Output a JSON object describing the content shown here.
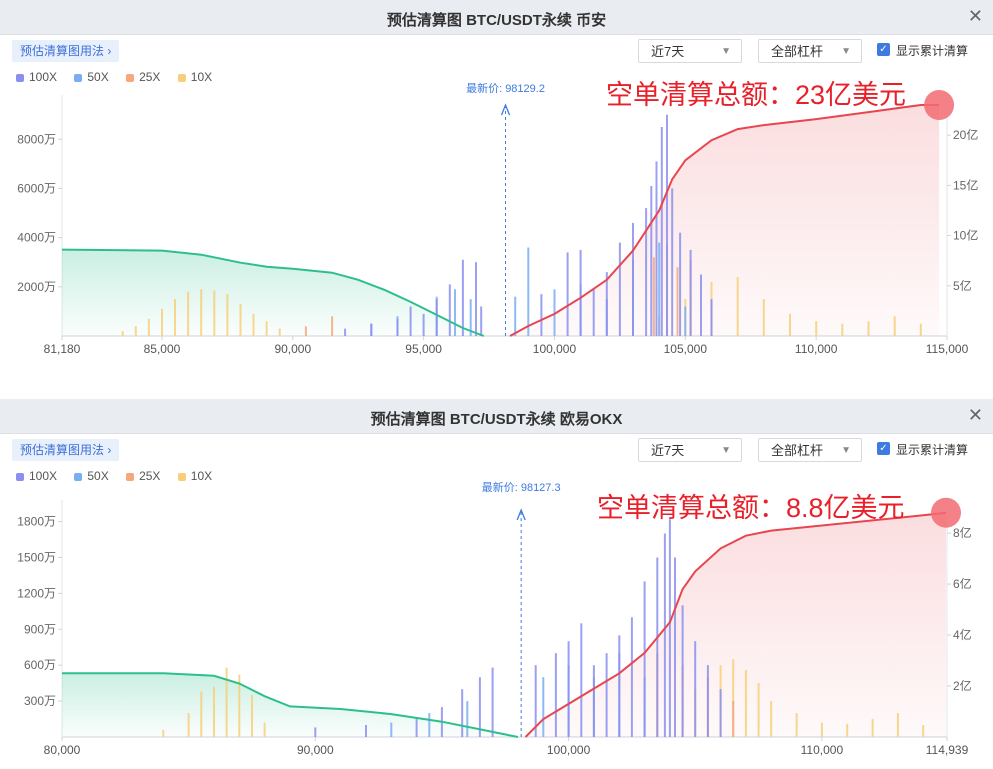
{
  "panels": [
    {
      "title": "预估清算图 BTC/USDT永续 币安",
      "howto": "预估清算图用法",
      "range_select": "近7天",
      "leverage_select": "全部杠杆",
      "show_cumulative": "显示累计清算",
      "legend": [
        "100X",
        "50X",
        "25X",
        "10X"
      ],
      "latest_label": "最新价: 98129.2",
      "annotation": "空单清算总额：23亿美元"
    },
    {
      "title": "预估清算图 BTC/USDT永续 欧易OKX",
      "howto": "预估清算图用法",
      "range_select": "近7天",
      "leverage_select": "全部杠杆",
      "show_cumulative": "显示累计清算",
      "legend": [
        "100X",
        "50X",
        "25X",
        "10X"
      ],
      "latest_label": "最新价: 98127.3",
      "annotation": "空单清算总额：8.8亿美元"
    }
  ],
  "colors": {
    "100X": "#8a8ff0",
    "50X": "#79aef5",
    "25X": "#f5a77d",
    "10X": "#f7cf7a",
    "long_cum": "#2dbf8a",
    "short_cum": "#e8454f",
    "accent": "#3d7be0"
  },
  "chart_data": [
    {
      "type": "bar",
      "exchange": "币安",
      "pair": "BTC/USDT永续",
      "latest_price": 98129.2,
      "xlim": [
        81180,
        115000
      ],
      "x_ticks": [
        "81,180",
        "85,000",
        "90,000",
        "95,000",
        "100,000",
        "105,000",
        "110,000",
        "115,000"
      ],
      "x_tick_values": [
        81180,
        85000,
        90000,
        95000,
        100000,
        105000,
        110000,
        115000
      ],
      "y_left_ticks": [
        "2000万",
        "4000万",
        "6000万",
        "8000万"
      ],
      "y_left_values": [
        2000,
        4000,
        6000,
        8000
      ],
      "ylim_left": [
        0,
        9800
      ],
      "y_right_ticks": [
        "5亿",
        "10亿",
        "15亿",
        "20亿"
      ],
      "y_right_values": [
        5,
        10,
        15,
        20
      ],
      "ylim_right": [
        0,
        24
      ],
      "long_cumulative": {
        "x": [
          81180,
          85000,
          86500,
          88000,
          89000,
          90000,
          91500,
          92500,
          93500,
          94500,
          95500,
          96500,
          97300
        ],
        "y_yi": [
          8.6,
          8.5,
          8.1,
          7.3,
          6.9,
          6.7,
          6.3,
          5.6,
          4.6,
          3.4,
          2.1,
          0.8,
          0
        ]
      },
      "short_cumulative": {
        "x": [
          98300,
          99000,
          100000,
          101000,
          102000,
          103000,
          104000,
          104500,
          105000,
          106000,
          107000,
          108000,
          110000,
          112000,
          114000,
          114700
        ],
        "y_yi": [
          0,
          1.0,
          2.2,
          3.8,
          5.6,
          8.5,
          12.5,
          15.6,
          17.5,
          19.5,
          20.6,
          21.0,
          21.6,
          22.3,
          23.0,
          23.0
        ]
      },
      "bars": {
        "100X": {
          "x": [
            92000,
            93000,
            94000,
            94500,
            95000,
            95500,
            96000,
            96500,
            97000,
            97200,
            99500,
            100500,
            101000,
            101500,
            102000,
            102500,
            103000,
            103500,
            103700,
            103900,
            104100,
            104300,
            104500,
            104800,
            105200,
            105600,
            106000
          ],
          "y": [
            300,
            500,
            700,
            1200,
            900,
            1500,
            2100,
            3100,
            3000,
            1200,
            1700,
            3400,
            3500,
            1900,
            2600,
            3800,
            4600,
            5200,
            6100,
            7100,
            8500,
            9000,
            6000,
            4200,
            3500,
            2500,
            1500
          ]
        },
        "50X": {
          "x": [
            93000,
            94000,
            95500,
            96200,
            96800,
            98500,
            99000,
            100000,
            101000,
            102000,
            103000,
            104000,
            105000
          ],
          "y": [
            500,
            800,
            1600,
            1900,
            1500,
            1600,
            3600,
            1900,
            2100,
            1500,
            3100,
            3800,
            1200
          ]
        },
        "25X": {
          "x": [
            90500,
            91500,
            103800,
            104300,
            104700,
            105200,
            106000
          ],
          "y": [
            400,
            800,
            3200,
            3700,
            2800,
            3100,
            1500
          ]
        },
        "10X": {
          "x": [
            83500,
            84000,
            84500,
            85000,
            85500,
            86000,
            86500,
            87000,
            87500,
            88000,
            88500,
            89000,
            89500,
            104000,
            105000,
            106000,
            107000,
            108000,
            109000,
            110000,
            111000,
            112000,
            113000,
            114000
          ],
          "y": [
            200,
            400,
            700,
            1100,
            1500,
            1800,
            1900,
            1850,
            1700,
            1300,
            900,
            600,
            300,
            800,
            1500,
            2200,
            2400,
            1500,
            900,
            600,
            500,
            600,
            800,
            500
          ]
        }
      }
    },
    {
      "type": "bar",
      "exchange": "欧易OKX",
      "pair": "BTC/USDT永续",
      "latest_price": 98127.3,
      "xlim": [
        80000,
        114939
      ],
      "x_ticks": [
        "80,000",
        "90,000",
        "100,000",
        "110,000",
        "114,939"
      ],
      "x_tick_values": [
        80000,
        90000,
        100000,
        110000,
        114939
      ],
      "y_left_ticks": [
        "300万",
        "600万",
        "900万",
        "1200万",
        "1500万",
        "1800万"
      ],
      "y_left_values": [
        300,
        600,
        900,
        1200,
        1500,
        1800
      ],
      "ylim_left": [
        0,
        1980
      ],
      "y_right_ticks": [
        "2亿",
        "4亿",
        "6亿",
        "8亿"
      ],
      "y_right_values": [
        2,
        4,
        6,
        8
      ],
      "ylim_right": [
        0,
        9.3
      ],
      "long_cumulative": {
        "x": [
          80000,
          84000,
          86000,
          87000,
          88000,
          89000,
          91000,
          93000,
          95000,
          97000,
          98000
        ],
        "y_yi": [
          2.5,
          2.5,
          2.4,
          2.1,
          1.6,
          1.2,
          1.1,
          0.9,
          0.6,
          0.2,
          0
        ]
      },
      "short_cumulative": {
        "x": [
          98300,
          99000,
          100000,
          101000,
          102000,
          103000,
          104000,
          104500,
          105000,
          106000,
          107000,
          108000,
          110000,
          112000,
          114000,
          114900
        ],
        "y_yi": [
          0,
          0.7,
          1.3,
          1.9,
          2.5,
          3.3,
          4.5,
          5.8,
          6.5,
          7.4,
          7.9,
          8.1,
          8.3,
          8.5,
          8.7,
          8.8
        ]
      },
      "bars": {
        "100X": {
          "x": [
            90000,
            92000,
            94000,
            95000,
            95800,
            96500,
            97000,
            98700,
            99500,
            100000,
            100500,
            101000,
            101500,
            102000,
            102500,
            103000,
            103500,
            103800,
            104000,
            104200,
            104500,
            105000,
            105500,
            106000
          ],
          "y": [
            80,
            100,
            150,
            250,
            400,
            500,
            580,
            600,
            700,
            800,
            950,
            600,
            700,
            850,
            1000,
            1300,
            1500,
            1700,
            1820,
            1500,
            1100,
            800,
            600,
            400
          ]
        },
        "50X": {
          "x": [
            93000,
            94500,
            96000,
            99000,
            100000,
            101000,
            102000,
            103000
          ],
          "y": [
            120,
            200,
            300,
            500,
            600,
            500,
            700,
            500
          ]
        },
        "25X": {
          "x": [
            103500,
            104500,
            105500,
            106500
          ],
          "y": [
            700,
            600,
            500,
            300
          ]
        },
        "10X": {
          "x": [
            84000,
            85000,
            85500,
            86000,
            86500,
            87000,
            87500,
            88000,
            105000,
            106000,
            106500,
            107000,
            107500,
            108000,
            109000,
            110000,
            111000,
            112000,
            113000,
            114000
          ],
          "y": [
            60,
            200,
            380,
            420,
            580,
            520,
            350,
            120,
            400,
            600,
            650,
            560,
            450,
            300,
            200,
            120,
            110,
            150,
            200,
            100
          ]
        }
      }
    }
  ]
}
